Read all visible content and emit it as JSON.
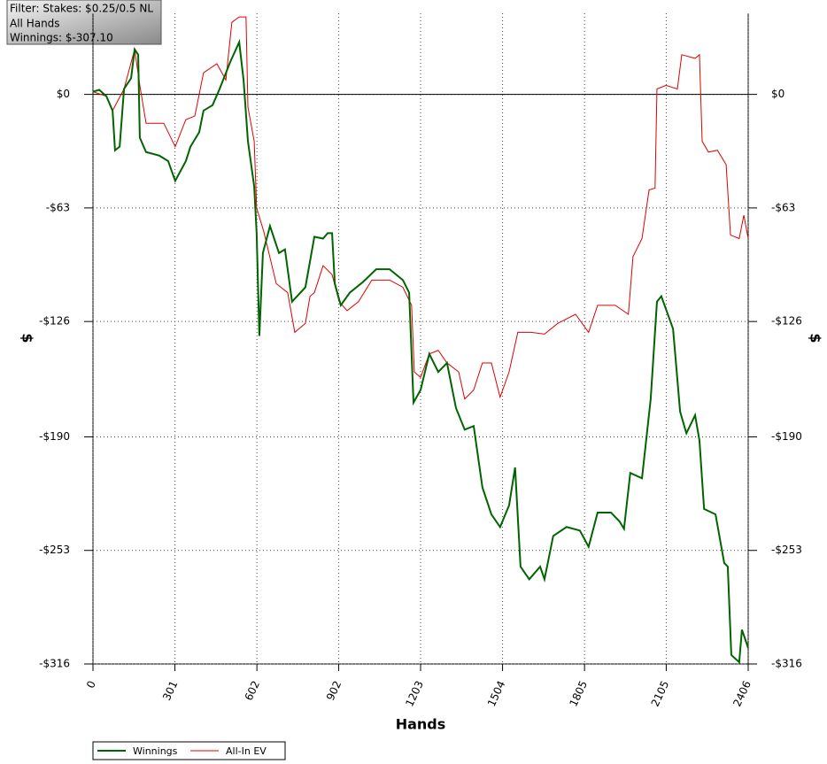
{
  "chart_data": {
    "type": "line",
    "annotation": [
      "Filter: Stakes: $0.25/0.5 NL",
      "All Hands",
      "Winnings: $-307.10"
    ],
    "xlabel": "Hands",
    "ylabel": "$",
    "xlim": [
      0,
      2406
    ],
    "ylim": [
      -316,
      45
    ],
    "xticks": [
      0,
      301,
      602,
      902,
      1203,
      1504,
      1805,
      2105,
      2406
    ],
    "yticks": [
      {
        "value": 0,
        "label": "$0"
      },
      {
        "value": -63,
        "label": "-$63"
      },
      {
        "value": -126,
        "label": "-$126"
      },
      {
        "value": -190,
        "label": "-$190"
      },
      {
        "value": -253,
        "label": "-$253"
      },
      {
        "value": -316,
        "label": "-$316"
      }
    ],
    "grid": true,
    "reference_line": 0,
    "legend": "bottom-left",
    "series": [
      {
        "name": "Winnings",
        "color": "#006400",
        "x": [
          0,
          23,
          49,
          72,
          81,
          98,
          114,
          140,
          153,
          166,
          172,
          195,
          244,
          276,
          302,
          341,
          358,
          390,
          406,
          439,
          465,
          504,
          537,
          553,
          569,
          592,
          601,
          611,
          624,
          650,
          683,
          705,
          731,
          780,
          813,
          845,
          862,
          878,
          888,
          910,
          943,
          992,
          1040,
          1089,
          1138,
          1161,
          1177,
          1203,
          1235,
          1268,
          1300,
          1333,
          1365,
          1398,
          1430,
          1463,
          1495,
          1528,
          1550,
          1570,
          1602,
          1642,
          1658,
          1690,
          1739,
          1788,
          1820,
          1853,
          1902,
          1934,
          1950,
          1973,
          2016,
          2048,
          2071,
          2087,
          2130,
          2156,
          2179,
          2211,
          2227,
          2244,
          2286,
          2318,
          2331,
          2344,
          2373,
          2383,
          2406
        ],
        "values": [
          1.5,
          2.5,
          -1,
          -9,
          -31,
          -29,
          3,
          9,
          25,
          22,
          -24,
          -32,
          -34,
          -37,
          -48,
          -37,
          -29,
          -21,
          -9,
          -6,
          3,
          18,
          29,
          8,
          -26,
          -51,
          -77,
          -134,
          -88,
          -73,
          -88,
          -86,
          -115,
          -107,
          -79,
          -80,
          -77,
          -77,
          -105,
          -117,
          -110,
          -104,
          -97,
          -97,
          -103,
          -110,
          -171,
          -164,
          -144,
          -154,
          -149,
          -174,
          -186,
          -184,
          -218,
          -233,
          -240,
          -228,
          -207,
          -262,
          -269,
          -262,
          -269,
          -245,
          -240,
          -242,
          -251,
          -232,
          -232,
          -237,
          -241,
          -210,
          -213,
          -169,
          -115,
          -112,
          -130,
          -176,
          -188,
          -178,
          -192,
          -230,
          -233,
          -260,
          -262,
          -311,
          -315,
          -297,
          -307.1
        ]
      },
      {
        "name": "All-In EV",
        "color": "#e00000",
        "x": [
          0,
          49,
          72,
          114,
          153,
          172,
          195,
          260,
          302,
          341,
          374,
          406,
          455,
          488,
          510,
          537,
          562,
          569,
          592,
          601,
          627,
          673,
          715,
          741,
          780,
          797,
          813,
          845,
          878,
          904,
          933,
          975,
          1024,
          1089,
          1138,
          1170,
          1180,
          1203,
          1235,
          1268,
          1300,
          1343,
          1365,
          1398,
          1430,
          1463,
          1495,
          1528,
          1560,
          1609,
          1658,
          1707,
          1772,
          1820,
          1853,
          1918,
          1966,
          1983,
          2016,
          2042,
          2064,
          2071,
          2104,
          2146,
          2162,
          2211,
          2227,
          2237,
          2260,
          2293,
          2325,
          2341,
          2373,
          2390,
          2406
        ],
        "values": [
          1.5,
          -1,
          -9,
          3,
          25,
          5,
          -16,
          -16,
          -29,
          -14,
          -12,
          12,
          17,
          8,
          40,
          43,
          43,
          -7,
          -26,
          -63,
          -76,
          -105,
          -110,
          -132,
          -127,
          -112,
          -110,
          -95,
          -100,
          -115,
          -120,
          -115,
          -103,
          -103,
          -107,
          -117,
          -154,
          -157,
          -144,
          -142,
          -149,
          -154,
          -169,
          -164,
          -149,
          -149,
          -168,
          -154,
          -132,
          -132,
          -133,
          -127,
          -122,
          -132,
          -117,
          -117,
          -122,
          -90,
          -80,
          -53,
          -52,
          3,
          5,
          3,
          22,
          20,
          22,
          -26,
          -32,
          -31,
          -39,
          -78,
          -80,
          -67,
          -80
        ]
      }
    ]
  }
}
